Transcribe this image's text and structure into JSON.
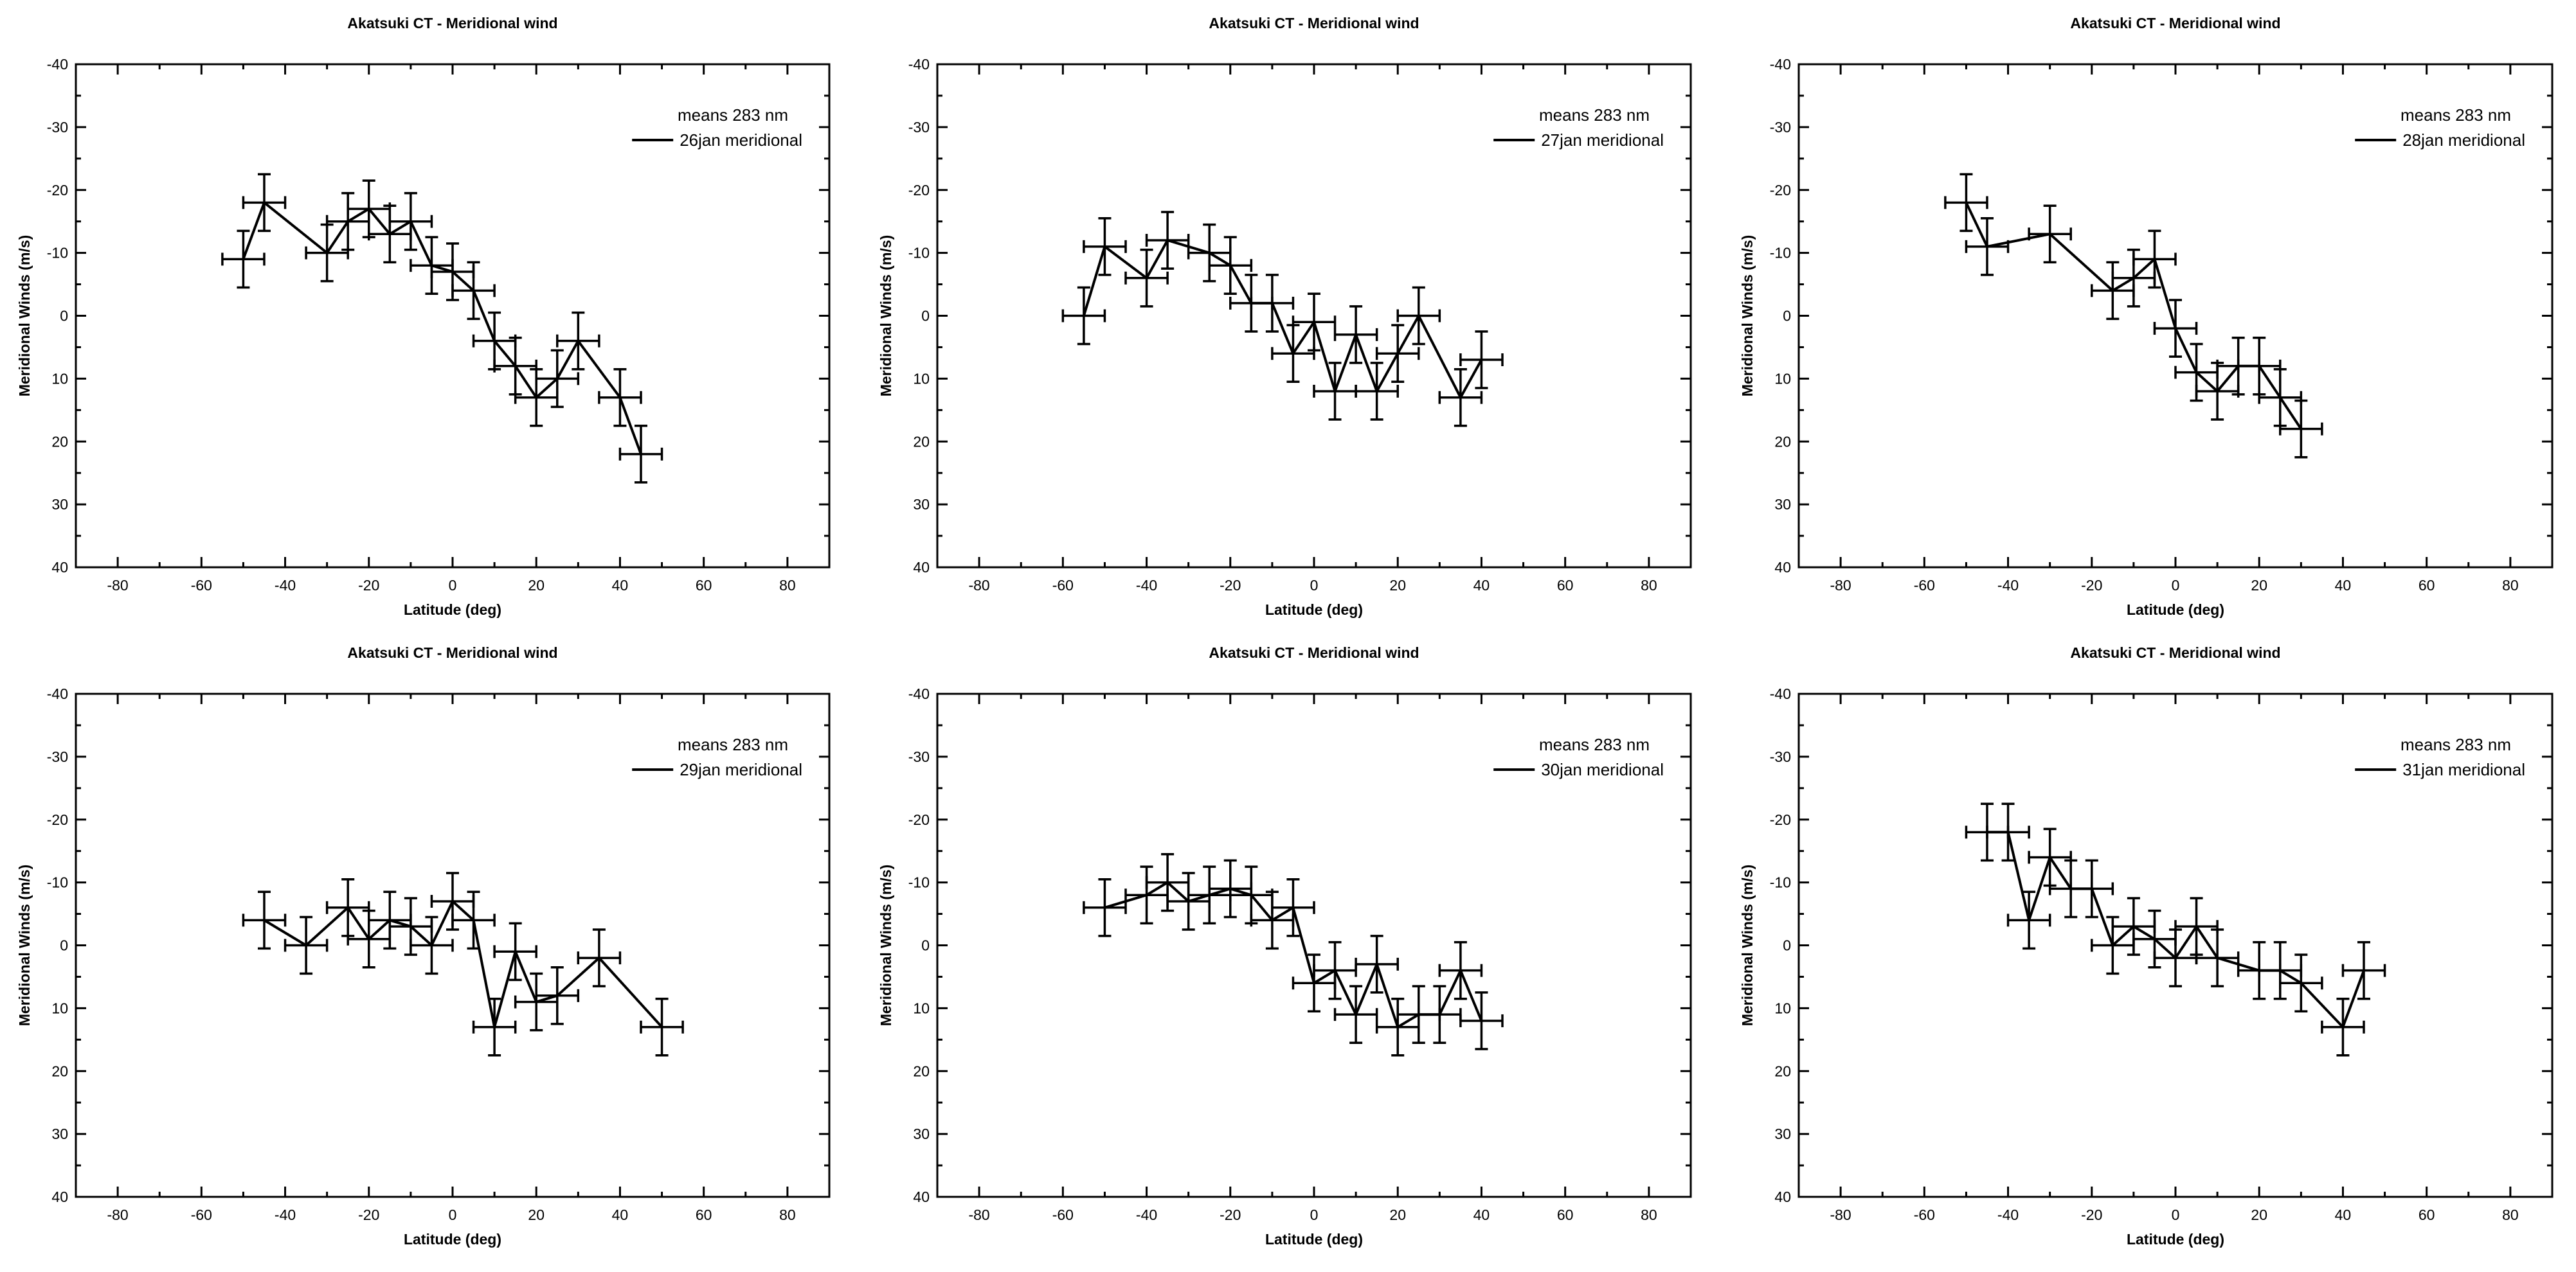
{
  "chart_data": [
    {
      "type": "line",
      "title": "Akatsuki CT - Meridional wind",
      "xlabel": "Latitude (deg)",
      "ylabel": "Meridional Winds (m/s)",
      "xlim": [
        -90,
        90
      ],
      "ylim": [
        -40,
        40
      ],
      "y_inverted": true,
      "xticks": [
        -80,
        -60,
        -40,
        -20,
        0,
        20,
        40,
        60,
        80
      ],
      "yticks": [
        -40,
        -30,
        -20,
        -10,
        0,
        10,
        20,
        30,
        40
      ],
      "legend_title": "means 283 nm",
      "legend_position": "top-right",
      "series": [
        {
          "name": "26jan meridional",
          "x": [
            -50,
            -45,
            -30,
            -25,
            -20,
            -15,
            -10,
            -5,
            0,
            5,
            10,
            15,
            20,
            25,
            30,
            40,
            45
          ],
          "y": [
            -9,
            -18,
            -10,
            -15,
            -17,
            -13,
            -15,
            -8,
            -7,
            -4,
            4,
            8,
            13,
            10,
            4,
            13,
            22
          ],
          "xerr": 5,
          "yerr": 4.5
        }
      ]
    },
    {
      "type": "line",
      "title": "Akatsuki CT - Meridional wind",
      "xlabel": "Latitude (deg)",
      "ylabel": "Meridional Winds (m/s)",
      "xlim": [
        -90,
        90
      ],
      "ylim": [
        -40,
        40
      ],
      "y_inverted": true,
      "xticks": [
        -80,
        -60,
        -40,
        -20,
        0,
        20,
        40,
        60,
        80
      ],
      "yticks": [
        -40,
        -30,
        -20,
        -10,
        0,
        10,
        20,
        30,
        40
      ],
      "legend_title": "means 283 nm",
      "legend_position": "top-right",
      "series": [
        {
          "name": "27jan meridional",
          "x": [
            -55,
            -50,
            -40,
            -35,
            -25,
            -20,
            -15,
            -10,
            -5,
            0,
            5,
            10,
            15,
            20,
            25,
            35,
            40
          ],
          "y": [
            0,
            -11,
            -6,
            -12,
            -10,
            -8,
            -2,
            -2,
            6,
            1,
            12,
            3,
            12,
            6,
            0,
            13,
            7
          ],
          "xerr": 5,
          "yerr": 4.5
        }
      ]
    },
    {
      "type": "line",
      "title": "Akatsuki CT - Meridional wind",
      "xlabel": "Latitude (deg)",
      "ylabel": "Meridional Winds (m/s)",
      "xlim": [
        -90,
        90
      ],
      "ylim": [
        -40,
        40
      ],
      "y_inverted": true,
      "xticks": [
        -80,
        -60,
        -40,
        -20,
        0,
        20,
        40,
        60,
        80
      ],
      "yticks": [
        -40,
        -30,
        -20,
        -10,
        0,
        10,
        20,
        30,
        40
      ],
      "legend_title": "means 283 nm",
      "legend_position": "top-right",
      "series": [
        {
          "name": "28jan meridional",
          "x": [
            -50,
            -45,
            -30,
            -15,
            -10,
            -5,
            0,
            5,
            10,
            15,
            20,
            25,
            30
          ],
          "y": [
            -18,
            -11,
            -13,
            -4,
            -6,
            -9,
            2,
            9,
            12,
            8,
            8,
            13,
            18
          ],
          "xerr": 5,
          "yerr": 4.5
        }
      ]
    },
    {
      "type": "line",
      "title": "Akatsuki CT - Meridional wind",
      "xlabel": "Latitude (deg)",
      "ylabel": "Meridional Winds (m/s)",
      "xlim": [
        -90,
        90
      ],
      "ylim": [
        -40,
        40
      ],
      "y_inverted": true,
      "xticks": [
        -80,
        -60,
        -40,
        -20,
        0,
        20,
        40,
        60,
        80
      ],
      "yticks": [
        -40,
        -30,
        -20,
        -10,
        0,
        10,
        20,
        30,
        40
      ],
      "legend_title": "means 283 nm",
      "legend_position": "top-right",
      "series": [
        {
          "name": "29jan meridional",
          "x": [
            -45,
            -35,
            -25,
            -20,
            -15,
            -10,
            -5,
            0,
            5,
            10,
            15,
            20,
            25,
            35,
            50
          ],
          "y": [
            -4,
            0,
            -6,
            -1,
            -4,
            -3,
            0,
            -7,
            -4,
            13,
            1,
            9,
            8,
            2,
            13
          ],
          "xerr": 5,
          "yerr": 4.5
        }
      ]
    },
    {
      "type": "line",
      "title": "Akatsuki CT - Meridional wind",
      "xlabel": "Latitude (deg)",
      "ylabel": "Meridional Winds (m/s)",
      "xlim": [
        -90,
        90
      ],
      "ylim": [
        -40,
        40
      ],
      "y_inverted": true,
      "xticks": [
        -80,
        -60,
        -40,
        -20,
        0,
        20,
        40,
        60,
        80
      ],
      "yticks": [
        -40,
        -30,
        -20,
        -10,
        0,
        10,
        20,
        30,
        40
      ],
      "legend_title": "means 283 nm",
      "legend_position": "top-right",
      "series": [
        {
          "name": "30jan meridional",
          "x": [
            -50,
            -40,
            -35,
            -30,
            -25,
            -20,
            -15,
            -10,
            -5,
            0,
            5,
            10,
            15,
            20,
            25,
            30,
            35,
            40
          ],
          "y": [
            -6,
            -8,
            -10,
            -7,
            -8,
            -9,
            -8,
            -4,
            -6,
            6,
            4,
            11,
            3,
            13,
            11,
            11,
            4,
            12
          ],
          "xerr": 5,
          "yerr": 4.5
        }
      ]
    },
    {
      "type": "line",
      "title": "Akatsuki CT - Meridional wind",
      "xlabel": "Latitude (deg)",
      "ylabel": "Meridional Winds (m/s)",
      "xlim": [
        -90,
        90
      ],
      "ylim": [
        -40,
        40
      ],
      "y_inverted": true,
      "xticks": [
        -80,
        -60,
        -40,
        -20,
        0,
        20,
        40,
        60,
        80
      ],
      "yticks": [
        -40,
        -30,
        -20,
        -10,
        0,
        10,
        20,
        30,
        40
      ],
      "legend_title": "means 283 nm",
      "legend_position": "top-right",
      "series": [
        {
          "name": "31jan meridional",
          "x": [
            -45,
            -40,
            -35,
            -30,
            -25,
            -20,
            -15,
            -10,
            -5,
            0,
            5,
            10,
            20,
            25,
            30,
            40,
            45
          ],
          "y": [
            -18,
            -18,
            -4,
            -14,
            -9,
            -9,
            0,
            -3,
            -1,
            2,
            -3,
            2,
            4,
            4,
            6,
            13,
            4
          ],
          "xerr": 5,
          "yerr": 4.5
        }
      ]
    }
  ]
}
